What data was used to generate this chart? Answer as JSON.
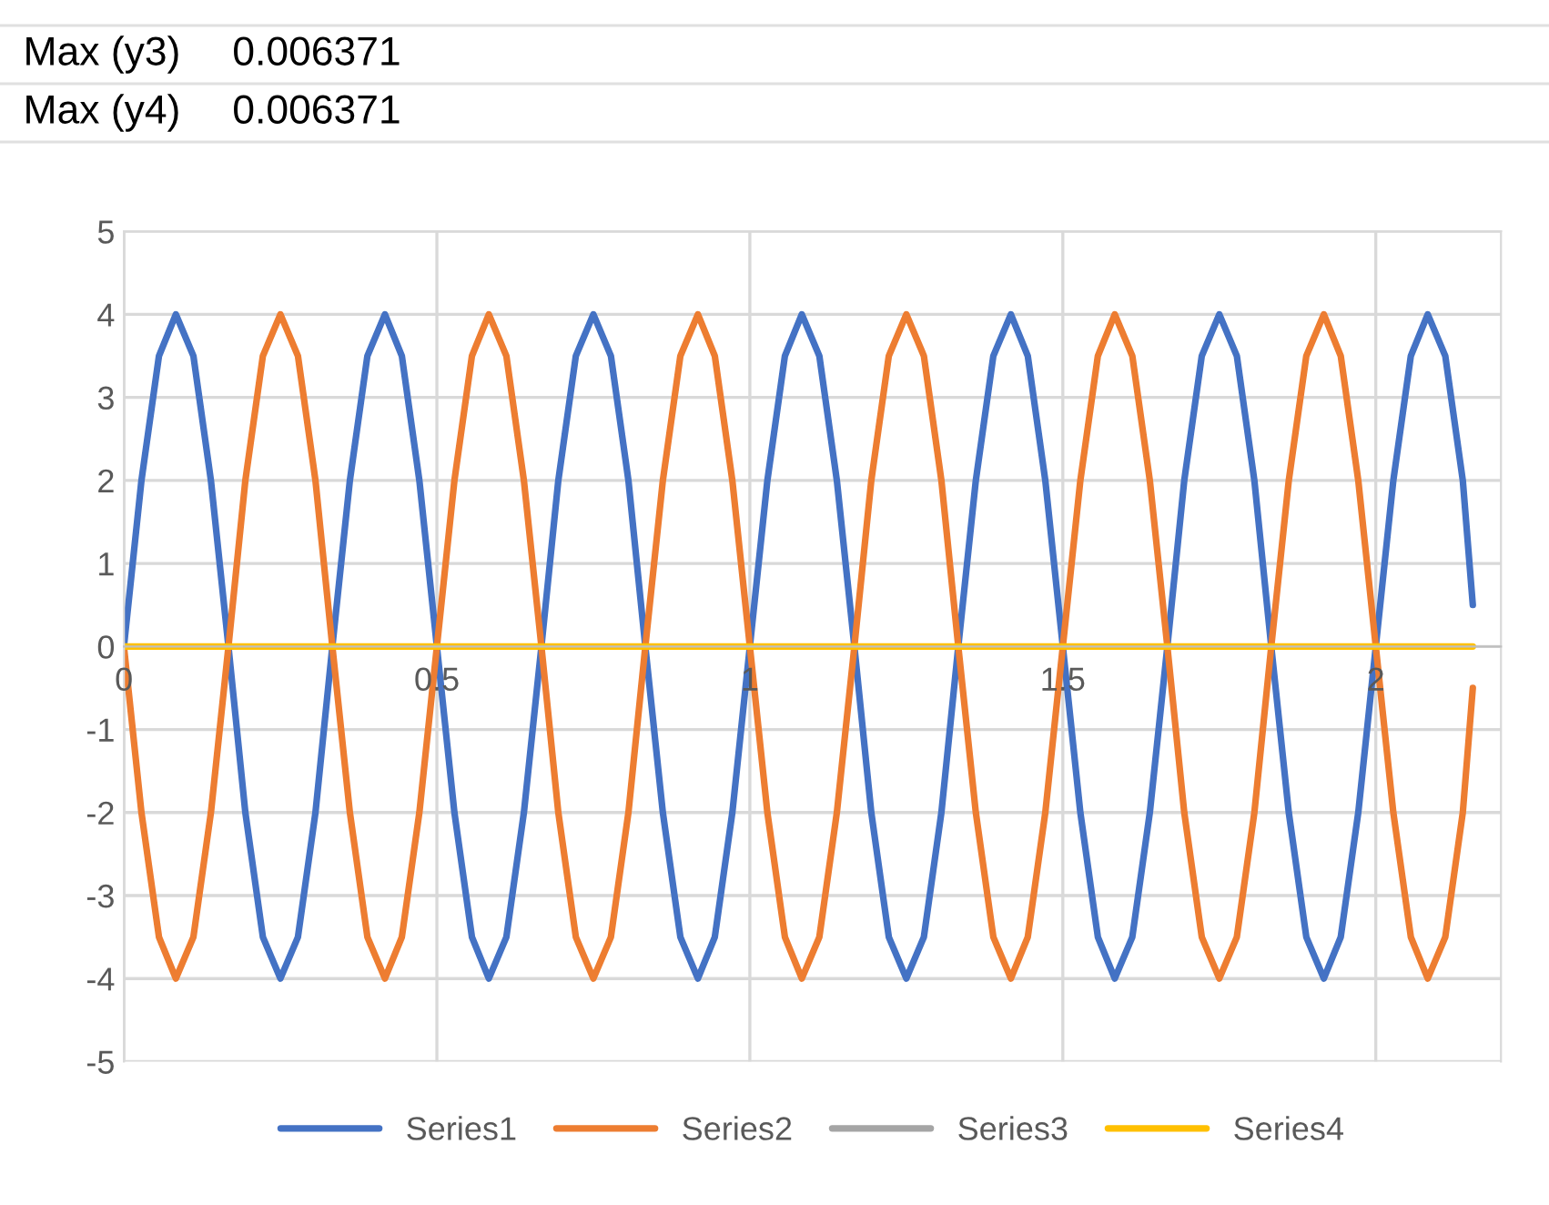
{
  "chart_data": {
    "type": "line",
    "annotations": [
      "Max (y3)",
      "0.006371",
      "Max (y4)",
      "0.006371"
    ],
    "xlim": [
      0,
      2.2
    ],
    "xticks": [
      0,
      0.5,
      1,
      1.5,
      2
    ],
    "ylim": [
      -5,
      5
    ],
    "yticks": [
      -5,
      -4,
      -3,
      -2,
      -1,
      0,
      1,
      2,
      3,
      4,
      5
    ],
    "grid": true,
    "legend": "bottom",
    "marker": "none",
    "line_style": "solid",
    "series": [
      {
        "name": "Series1",
        "color": "#4472c4",
        "x": [
          0,
          0.028,
          0.056,
          0.083,
          0.111,
          0.139,
          0.167,
          0.194,
          0.222,
          0.25,
          0.278,
          0.306,
          0.333,
          0.361,
          0.389,
          0.417,
          0.444,
          0.472,
          0.5,
          0.528,
          0.556,
          0.583,
          0.611,
          0.639,
          0.667,
          0.694,
          0.722,
          0.75,
          0.778,
          0.806,
          0.833,
          0.861,
          0.889,
          0.917,
          0.944,
          0.972,
          1,
          1.028,
          1.056,
          1.083,
          1.111,
          1.139,
          1.167,
          1.194,
          1.222,
          1.25,
          1.278,
          1.306,
          1.333,
          1.361,
          1.389,
          1.417,
          1.444,
          1.472,
          1.5,
          1.528,
          1.556,
          1.583,
          1.611,
          1.639,
          1.667,
          1.694,
          1.722,
          1.75,
          1.778,
          1.806,
          1.833,
          1.861,
          1.889,
          1.917,
          1.944,
          1.972,
          2,
          2.028,
          2.056,
          2.083,
          2.111,
          2.139,
          2.155
        ],
        "values": [
          0,
          2,
          3.5,
          4,
          3.5,
          2,
          0,
          -2,
          -3.5,
          -4,
          -3.5,
          -2,
          0,
          2,
          3.5,
          4,
          3.5,
          2,
          0,
          -2,
          -3.5,
          -4,
          -3.5,
          -2,
          0,
          2,
          3.5,
          4,
          3.5,
          2,
          0,
          -2,
          -3.5,
          -4,
          -3.5,
          -2,
          0,
          2,
          3.5,
          4,
          3.5,
          2,
          0,
          -2,
          -3.5,
          -4,
          -3.5,
          -2,
          0,
          2,
          3.5,
          4,
          3.5,
          2,
          0,
          -2,
          -3.5,
          -4,
          -3.5,
          -2,
          0,
          2,
          3.5,
          4,
          3.5,
          2,
          0,
          -2,
          -3.5,
          -4,
          -3.5,
          -2,
          0,
          2,
          3.5,
          4,
          3.5,
          2,
          0.5
        ]
      },
      {
        "name": "Series2",
        "color": "#ed7d31",
        "x": [
          0,
          0.028,
          0.056,
          0.083,
          0.111,
          0.139,
          0.167,
          0.194,
          0.222,
          0.25,
          0.278,
          0.306,
          0.333,
          0.361,
          0.389,
          0.417,
          0.444,
          0.472,
          0.5,
          0.528,
          0.556,
          0.583,
          0.611,
          0.639,
          0.667,
          0.694,
          0.722,
          0.75,
          0.778,
          0.806,
          0.833,
          0.861,
          0.889,
          0.917,
          0.944,
          0.972,
          1,
          1.028,
          1.056,
          1.083,
          1.111,
          1.139,
          1.167,
          1.194,
          1.222,
          1.25,
          1.278,
          1.306,
          1.333,
          1.361,
          1.389,
          1.417,
          1.444,
          1.472,
          1.5,
          1.528,
          1.556,
          1.583,
          1.611,
          1.639,
          1.667,
          1.694,
          1.722,
          1.75,
          1.778,
          1.806,
          1.833,
          1.861,
          1.889,
          1.917,
          1.944,
          1.972,
          2,
          2.028,
          2.056,
          2.083,
          2.111,
          2.139,
          2.155
        ],
        "values": [
          0,
          -2,
          -3.5,
          -4,
          -3.5,
          -2,
          0,
          2,
          3.5,
          4,
          3.5,
          2,
          0,
          -2,
          -3.5,
          -4,
          -3.5,
          -2,
          0,
          2,
          3.5,
          4,
          3.5,
          2,
          0,
          -2,
          -3.5,
          -4,
          -3.5,
          -2,
          0,
          2,
          3.5,
          4,
          3.5,
          2,
          0,
          -2,
          -3.5,
          -4,
          -3.5,
          -2,
          0,
          2,
          3.5,
          4,
          3.5,
          2,
          0,
          -2,
          -3.5,
          -4,
          -3.5,
          -2,
          0,
          2,
          3.5,
          4,
          3.5,
          2,
          0,
          -2,
          -3.5,
          -4,
          -3.5,
          -2,
          0,
          2,
          3.5,
          4,
          3.5,
          2,
          0,
          -2,
          -3.5,
          -4,
          -3.5,
          -2,
          -0.5
        ]
      },
      {
        "name": "Series3",
        "color": "#a5a5a5"
      },
      {
        "name": "Series4",
        "color": "#ffc000",
        "x": [
          0,
          2.155
        ],
        "values": [
          0,
          0
        ]
      }
    ]
  }
}
